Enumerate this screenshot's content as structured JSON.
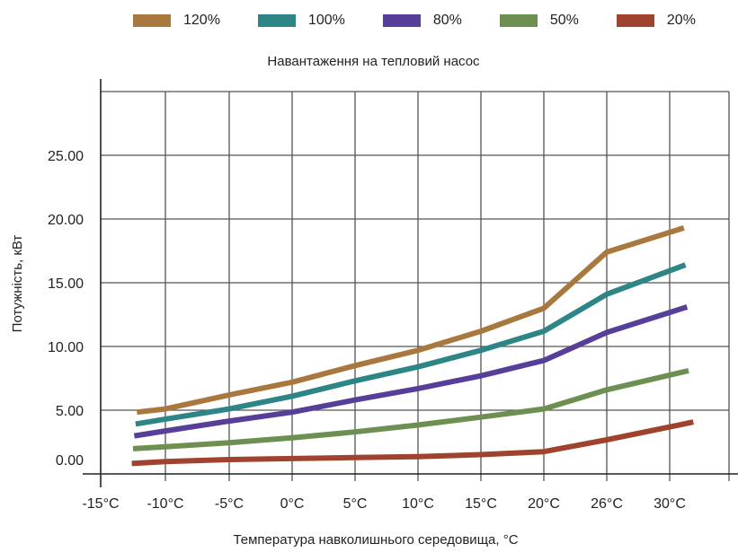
{
  "chart_data": {
    "type": "line",
    "title": "",
    "legend_title": "Навантаження на тепловий насос",
    "legend_position": "top",
    "xlabel": "Температура навколишнього середовища, °C",
    "ylabel": "Потужність, кВт",
    "x_ticks": [
      -15,
      -10,
      -5,
      0,
      5,
      10,
      15,
      20,
      26,
      30
    ],
    "x_tick_labels": [
      "-15°C",
      "-10°C",
      "-5°C",
      "0°C",
      "5°C",
      "10°C",
      "15°C",
      "20°C",
      "26°C",
      "30°C"
    ],
    "y_ticks": [
      0,
      5,
      10,
      15,
      20,
      25,
      30
    ],
    "y_tick_labels": [
      "0.00",
      "5.00",
      "10.00",
      "15.00",
      "20.00",
      "25.00",
      ""
    ],
    "ylim": [
      -1.5,
      30
    ],
    "grid": true,
    "series": [
      {
        "name": "120%",
        "color": "#A8783F",
        "x": [
          -12.2,
          -10,
          -5,
          0,
          5,
          10,
          15,
          20,
          26,
          30.9
        ],
        "values": [
          4.8,
          5.1,
          6.2,
          7.2,
          8.5,
          9.7,
          11.2,
          13.0,
          17.4,
          19.3
        ]
      },
      {
        "name": "100%",
        "color": "#2E8585",
        "x": [
          -12.3,
          -10,
          -5,
          0,
          5,
          10,
          15,
          20,
          26,
          31.0
        ],
        "values": [
          3.6,
          4.1,
          5.1,
          6.1,
          7.3,
          8.4,
          9.7,
          11.2,
          14.1,
          16.4
        ]
      },
      {
        "name": "80%",
        "color": "#573E99",
        "x": [
          -12.4,
          -10,
          -5,
          0,
          5,
          10,
          15,
          20,
          26,
          31.1
        ],
        "values": [
          2.4,
          2.9,
          3.9,
          4.8,
          5.8,
          6.7,
          7.7,
          8.9,
          11.1,
          13.1
        ]
      },
      {
        "name": "50%",
        "color": "#6E8F52",
        "x": [
          -12.5,
          -10,
          -5,
          0,
          5,
          10,
          15,
          20,
          26,
          31.2
        ],
        "values": [
          1.1,
          1.3,
          1.7,
          2.2,
          2.8,
          3.5,
          4.3,
          5.1,
          6.6,
          8.1
        ]
      },
      {
        "name": "20%",
        "color": "#A0432E",
        "x": [
          -12.6,
          -10,
          -5,
          0,
          5,
          10,
          15,
          20,
          26,
          31.5
        ],
        "values": [
          -0.4,
          -0.2,
          0.0,
          0.1,
          0.2,
          0.3,
          0.5,
          0.8,
          2.0,
          3.8
        ]
      }
    ]
  }
}
